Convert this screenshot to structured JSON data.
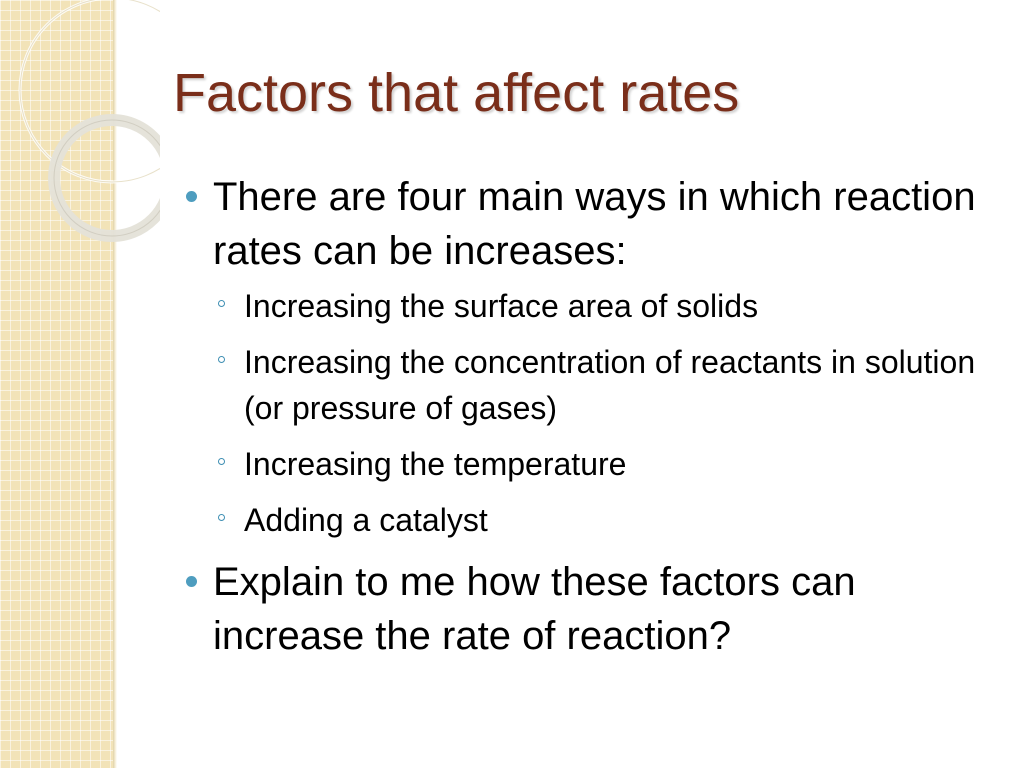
{
  "slide": {
    "title": "Factors that affect rates",
    "bullets": [
      {
        "text": "There are four main ways in which reaction rates can be increases:",
        "subbullets": [
          "Increasing the surface area of solids",
          "Increasing the concentration of reactants in solution (or pressure of gases)",
          "Increasing the temperature",
          "Adding a catalyst"
        ]
      },
      {
        "text": "Explain to me how these factors can increase the rate of reaction?"
      }
    ]
  },
  "theme": {
    "title_color": "#7a2e1a",
    "bullet_color": "#4e9dbf",
    "side_panel_color": "#f2e3b8"
  }
}
